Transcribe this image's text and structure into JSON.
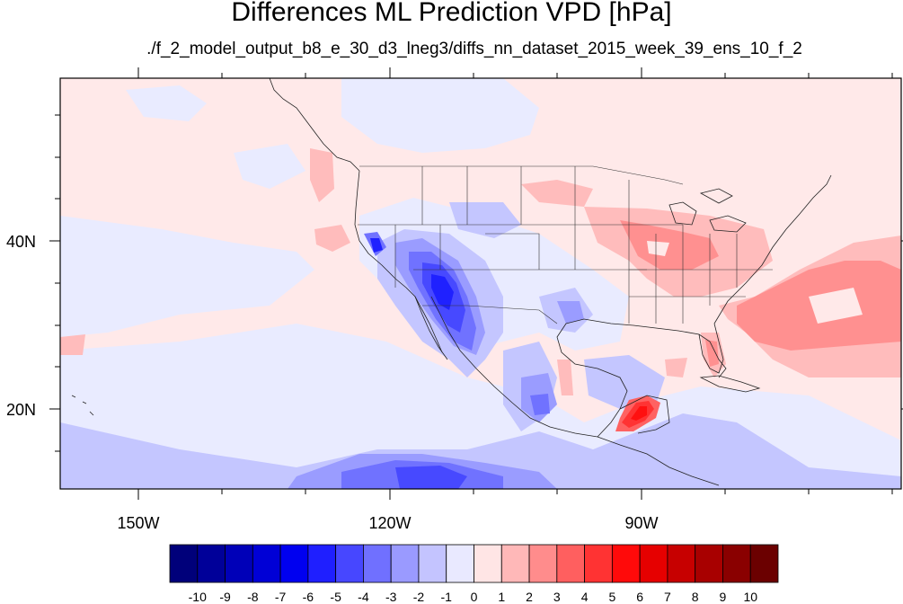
{
  "title": "Differences ML Prediction VPD [hPa]",
  "subtitle": "./f_2_model_output_b8_e_30_d3_lneg3/diffs_nn_dataset_2015_week_39_ens_10_f_2",
  "map": {
    "lon_labels": [
      "150W",
      "120W",
      "90W"
    ],
    "lat_labels": [
      "40N",
      "20N"
    ]
  },
  "colorbar": {
    "labels": [
      "-10",
      "-9",
      "-8",
      "-7",
      "-6",
      "-5",
      "-4",
      "-3",
      "-2",
      "-1",
      "0",
      "1",
      "2",
      "3",
      "4",
      "5",
      "6",
      "7",
      "8",
      "9",
      "10"
    ],
    "colors": [
      "#00007a",
      "#000099",
      "#0000b8",
      "#0000d6",
      "#0000f0",
      "#1f1fff",
      "#4747ff",
      "#7070ff",
      "#9a9aff",
      "#c4c4ff",
      "#e9e9ff",
      "#ffe5e5",
      "#ffb8b8",
      "#ff8c8c",
      "#ff5f5f",
      "#ff3333",
      "#ff0a0a",
      "#e60000",
      "#c70000",
      "#a80000",
      "#8a0000",
      "#6b0000"
    ]
  }
}
